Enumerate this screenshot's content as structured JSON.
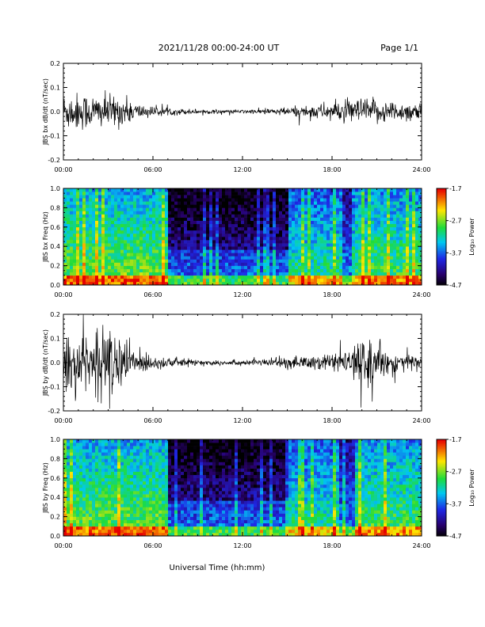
{
  "header": {
    "title": "2021/11/28  00:00-24:00 UT",
    "page": "Page 1/1"
  },
  "chart_data": [
    {
      "type": "line",
      "ylabel": "JBS bx dB/dt (nT/sec)",
      "x_ticks": [
        "00:00",
        "06:00",
        "12:00",
        "18:00",
        "24:00"
      ],
      "xlim_hours": [
        0,
        24
      ],
      "ylim": [
        -0.2,
        0.2
      ],
      "y_ticks": [
        "0.2",
        "0.1",
        "0.0",
        "-0.1",
        "-0.2"
      ],
      "envelope": {
        "hours": [
          0,
          1,
          2,
          3,
          4,
          5,
          6,
          7,
          8,
          9,
          10,
          11,
          12,
          13,
          14,
          15,
          16,
          17,
          18,
          19,
          20,
          21,
          22,
          23,
          24
        ],
        "amplitude": [
          0.07,
          0.07,
          0.065,
          0.06,
          0.055,
          0.03,
          0.018,
          0.014,
          0.011,
          0.009,
          0.008,
          0.007,
          0.007,
          0.009,
          0.012,
          0.016,
          0.022,
          0.028,
          0.035,
          0.04,
          0.05,
          0.045,
          0.04,
          0.035,
          0.035
        ]
      }
    },
    {
      "type": "heatmap",
      "ylabel": "JBS bx Freq (Hz)",
      "x_ticks": [
        "00:00",
        "06:00",
        "12:00",
        "18:00",
        "24:00"
      ],
      "xlim_hours": [
        0,
        24
      ],
      "ylim": [
        0.0,
        1.0
      ],
      "y_ticks": [
        "1.0",
        "0.8",
        "0.6",
        "0.4",
        "0.2",
        "0.0"
      ],
      "colorbar": {
        "label": "Log₁₀ Power",
        "ticks": [
          "-1.7",
          "-2.7",
          "-3.7",
          "-4.7"
        ],
        "range": [
          -4.7,
          -1.7
        ]
      }
    },
    {
      "type": "line",
      "ylabel": "JBS by dB/dt (nT/sec)",
      "x_ticks": [
        "00:00",
        "06:00",
        "12:00",
        "18:00",
        "24:00"
      ],
      "xlim_hours": [
        0,
        24
      ],
      "ylim": [
        -0.2,
        0.2
      ],
      "y_ticks": [
        "0.2",
        "0.1",
        "0.0",
        "-0.1",
        "-0.2"
      ],
      "envelope": {
        "hours": [
          0,
          1,
          2,
          3,
          4,
          5,
          6,
          7,
          8,
          9,
          10,
          11,
          12,
          13,
          14,
          15,
          16,
          17,
          18,
          19,
          20,
          21,
          22,
          23,
          24
        ],
        "amplitude": [
          0.09,
          0.1,
          0.12,
          0.13,
          0.1,
          0.05,
          0.025,
          0.02,
          0.015,
          0.012,
          0.01,
          0.01,
          0.01,
          0.012,
          0.016,
          0.02,
          0.025,
          0.03,
          0.035,
          0.04,
          0.08,
          0.07,
          0.04,
          0.035,
          0.035
        ]
      }
    },
    {
      "type": "heatmap",
      "ylabel": "JBS by Freq (Hz)",
      "x_ticks": [
        "00:00",
        "06:00",
        "12:00",
        "18:00",
        "24:00"
      ],
      "xlim_hours": [
        0,
        24
      ],
      "ylim": [
        0.0,
        1.0
      ],
      "y_ticks": [
        "1.0",
        "0.8",
        "0.6",
        "0.4",
        "0.2",
        "0.0"
      ],
      "colorbar": {
        "label": "Log₁₀ Power",
        "ticks": [
          "-1.7",
          "-2.7",
          "-3.7",
          "-4.7"
        ],
        "range": [
          -4.7,
          -1.7
        ]
      }
    }
  ],
  "xlabel": "Universal Time (hh:mm)"
}
